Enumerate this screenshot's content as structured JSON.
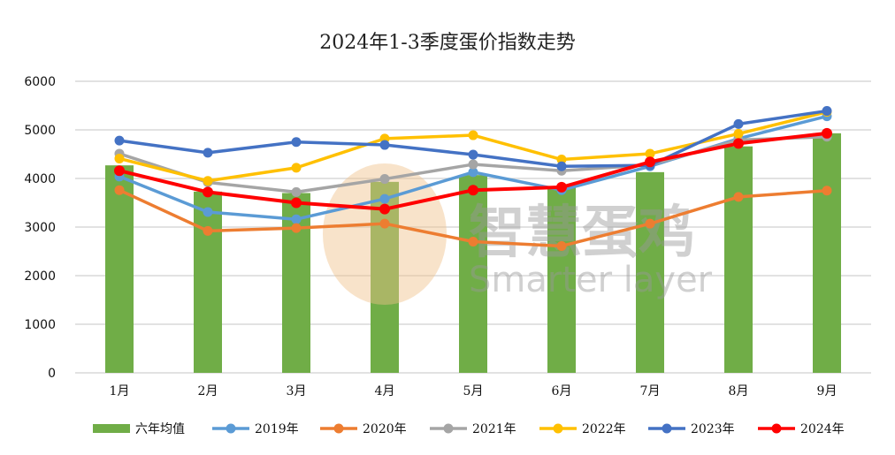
{
  "chart_data": {
    "type": "bar+line",
    "title": "2024年1-3季度蛋价指数走势",
    "categories": [
      "1月",
      "2月",
      "3月",
      "4月",
      "5月",
      "6月",
      "7月",
      "8月",
      "9月"
    ],
    "ylim": [
      0,
      6000
    ],
    "yticks": [
      0,
      1000,
      2000,
      3000,
      4000,
      5000,
      6000
    ],
    "grid": true,
    "legend_position": "bottom",
    "bars": {
      "name": "六年均值",
      "color": "#70AD47",
      "values": [
        4270,
        3730,
        3700,
        3930,
        4070,
        3810,
        4130,
        4660,
        4930
      ]
    },
    "series": [
      {
        "name": "2019年",
        "color": "#5B9BD5",
        "values": [
          4040,
          3310,
          3160,
          3580,
          4130,
          3760,
          4250,
          4820,
          5280
        ]
      },
      {
        "name": "2020年",
        "color": "#ED7D31",
        "values": [
          3760,
          2920,
          2980,
          3070,
          2700,
          2610,
          3070,
          3620,
          3750
        ]
      },
      {
        "name": "2021年",
        "color": "#A5A5A5",
        "values": [
          4510,
          3920,
          3720,
          3990,
          4290,
          4160,
          4280,
          4790,
          4860
        ]
      },
      {
        "name": "2022年",
        "color": "#FFC000",
        "values": [
          4410,
          3950,
          4220,
          4820,
          4890,
          4390,
          4510,
          4920,
          5370
        ]
      },
      {
        "name": "2023年",
        "color": "#4472C4",
        "values": [
          4780,
          4530,
          4750,
          4690,
          4490,
          4250,
          4270,
          5120,
          5390
        ]
      },
      {
        "name": "2024年",
        "color": "#FF0000",
        "values": [
          4160,
          3720,
          3500,
          3370,
          3760,
          3820,
          4340,
          4720,
          4930
        ]
      }
    ]
  },
  "watermark": {
    "cn": "智慧蛋鸡",
    "en": "Smarter layer"
  }
}
